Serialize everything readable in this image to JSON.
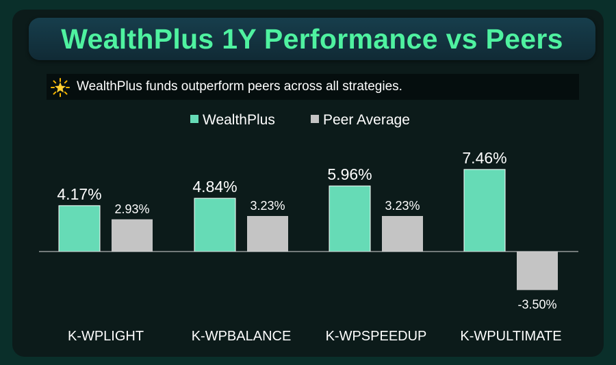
{
  "header": {
    "title": "WealthPlus 1Y Performance vs Peers",
    "subtitle": "WealthPlus funds outperform peers across all strategies.",
    "subtitle_icon": "sparkle-star-icon"
  },
  "colors": {
    "wealthplus": "#66dbb6",
    "peer": "#c4c4c4",
    "title": "#4ff2a0",
    "background": "#0c1b1a"
  },
  "chart_data": {
    "type": "bar",
    "categories": [
      "K-WPLIGHT",
      "K-WPBALANCE",
      "K-WPSPEEDUP",
      "K-WPULTIMATE"
    ],
    "series": [
      {
        "name": "WealthPlus",
        "values": [
          4.17,
          4.84,
          5.96,
          7.46
        ],
        "labels": [
          "4.17%",
          "4.84%",
          "5.96%",
          "7.46%"
        ]
      },
      {
        "name": "Peer Average",
        "values": [
          2.93,
          3.23,
          3.23,
          -3.5
        ],
        "labels": [
          "2.93%",
          "3.23%",
          "3.23%",
          "-3.50%"
        ]
      }
    ],
    "legend_position": "top",
    "grid": false
  }
}
